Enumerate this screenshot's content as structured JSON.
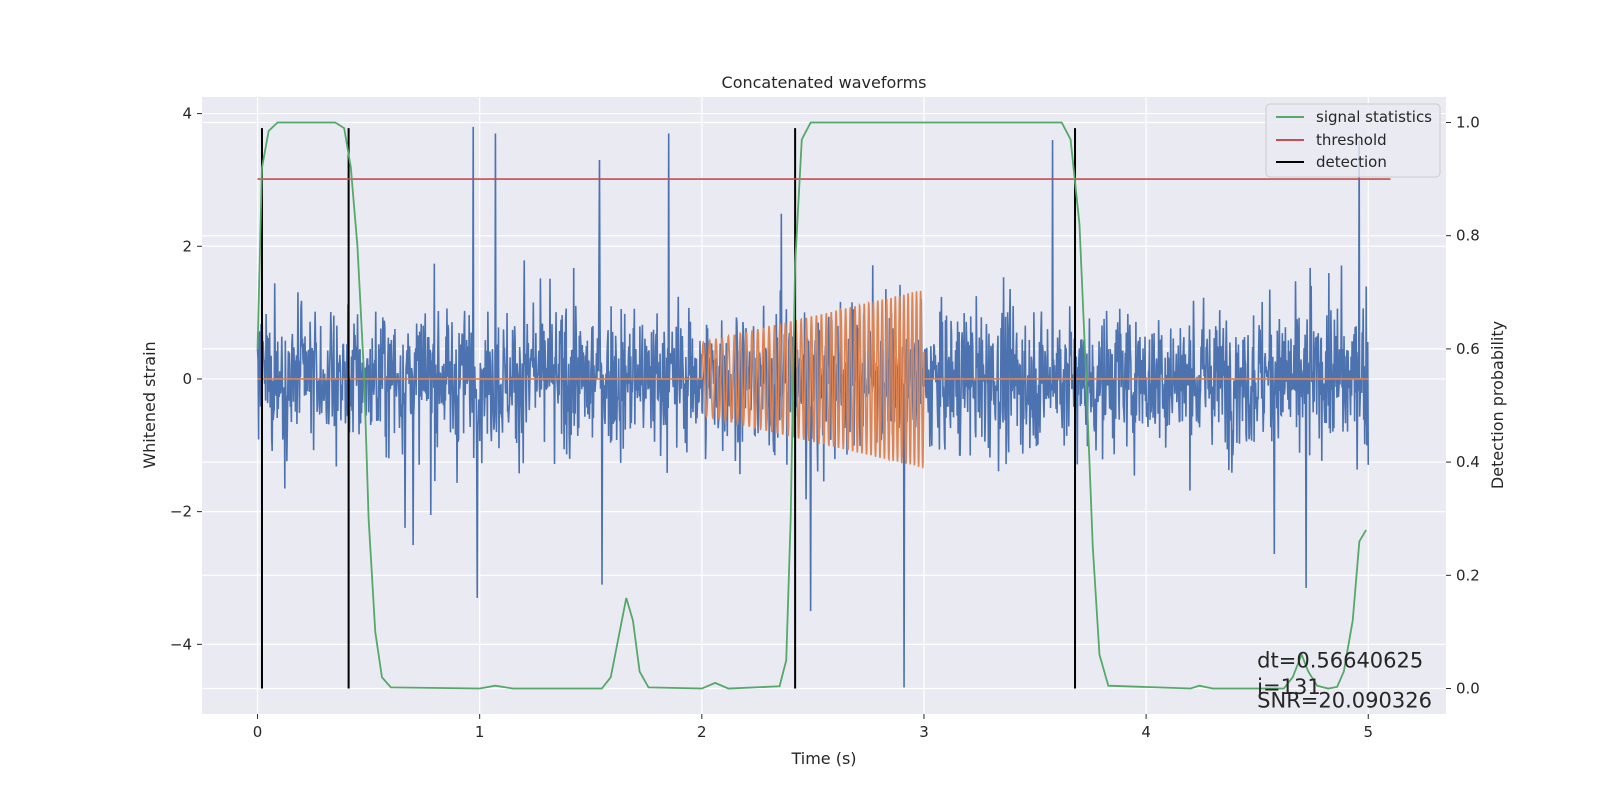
{
  "chart_data": {
    "type": "line",
    "title": "Concatenated waveforms",
    "xlabel": "Time (s)",
    "ylabel": "Whitened strain",
    "y2label": "Detection probability",
    "xlim": [
      -0.25,
      5.35
    ],
    "ylim": [
      -5.05,
      4.25
    ],
    "y2lim": [
      -0.045,
      1.045
    ],
    "xticks": [
      0,
      1,
      2,
      3,
      4,
      5
    ],
    "xtick_labels": [
      "0",
      "1",
      "2",
      "3",
      "4",
      "5"
    ],
    "yticks": [
      -4,
      -2,
      0,
      2,
      4
    ],
    "ytick_labels": [
      "−4",
      "−2",
      "0",
      "2",
      "4"
    ],
    "y2ticks": [
      0.0,
      0.2,
      0.4,
      0.6,
      0.8,
      1.0
    ],
    "y2tick_labels": [
      "0.0",
      "0.2",
      "0.4",
      "0.6",
      "0.8",
      "1.0"
    ],
    "grid": true,
    "legend_position": "top-right",
    "series": [
      {
        "name": "",
        "role": "whitened strain noise",
        "axis": "left",
        "color": "#4c72b0",
        "x_range": [
          0,
          5
        ],
        "typical_amplitude": 0.75,
        "outliers": [
          {
            "x": 0.97,
            "y": 3.8
          },
          {
            "x": 1.07,
            "y": 3.7
          },
          {
            "x": 1.85,
            "y": 3.7
          },
          {
            "x": 1.54,
            "y": 3.3
          },
          {
            "x": 4.96,
            "y": 3.6
          },
          {
            "x": 3.58,
            "y": 3.6
          },
          {
            "x": 2.91,
            "y": -4.7
          },
          {
            "x": 0.99,
            "y": -3.3
          },
          {
            "x": 1.55,
            "y": -3.1
          },
          {
            "x": 2.49,
            "y": -3.5
          },
          {
            "x": 4.72,
            "y": -3.15
          }
        ]
      },
      {
        "name": "",
        "role": "injected chirp",
        "axis": "left",
        "color": "#dd8452",
        "x_range": [
          0,
          5
        ],
        "chirp_start": 2.0,
        "chirp_end": 3.0,
        "amplitude_start": 0.55,
        "amplitude_end": 1.35
      },
      {
        "name": "signal statistics",
        "axis": "right",
        "color": "#55a868",
        "points": [
          [
            0.0,
            0.6
          ],
          [
            0.02,
            0.92
          ],
          [
            0.05,
            0.985
          ],
          [
            0.09,
            1.0
          ],
          [
            0.35,
            1.0
          ],
          [
            0.39,
            0.99
          ],
          [
            0.42,
            0.92
          ],
          [
            0.45,
            0.78
          ],
          [
            0.48,
            0.55
          ],
          [
            0.5,
            0.3
          ],
          [
            0.53,
            0.1
          ],
          [
            0.56,
            0.02
          ],
          [
            0.6,
            0.002
          ],
          [
            1.0,
            0.0
          ],
          [
            1.07,
            0.005
          ],
          [
            1.15,
            0.0
          ],
          [
            1.55,
            0.0
          ],
          [
            1.59,
            0.02
          ],
          [
            1.62,
            0.08
          ],
          [
            1.66,
            0.16
          ],
          [
            1.69,
            0.12
          ],
          [
            1.72,
            0.03
          ],
          [
            1.76,
            0.002
          ],
          [
            2.0,
            0.0
          ],
          [
            2.06,
            0.01
          ],
          [
            2.12,
            0.0
          ],
          [
            2.35,
            0.004
          ],
          [
            2.38,
            0.05
          ],
          [
            2.4,
            0.3
          ],
          [
            2.42,
            0.75
          ],
          [
            2.45,
            0.97
          ],
          [
            2.49,
            1.0
          ],
          [
            3.62,
            1.0
          ],
          [
            3.66,
            0.97
          ],
          [
            3.7,
            0.82
          ],
          [
            3.73,
            0.55
          ],
          [
            3.76,
            0.25
          ],
          [
            3.79,
            0.06
          ],
          [
            3.83,
            0.005
          ],
          [
            4.2,
            0.0
          ],
          [
            4.24,
            0.005
          ],
          [
            4.3,
            0.0
          ],
          [
            4.62,
            0.0
          ],
          [
            4.66,
            0.02
          ],
          [
            4.7,
            0.06
          ],
          [
            4.73,
            0.03
          ],
          [
            4.77,
            0.005
          ],
          [
            4.82,
            0.0
          ],
          [
            4.86,
            0.003
          ],
          [
            4.89,
            0.03
          ],
          [
            4.93,
            0.12
          ],
          [
            4.96,
            0.26
          ],
          [
            4.99,
            0.28
          ]
        ]
      },
      {
        "name": "threshold",
        "axis": "right",
        "color": "#c44e52",
        "x": [
          0,
          5.1
        ],
        "y": 0.9
      },
      {
        "name": "detection",
        "axis": "right",
        "color": "#000000",
        "x_positions": [
          0.02,
          0.41,
          2.42,
          3.68
        ],
        "y_range": [
          0.0,
          0.99
        ]
      }
    ],
    "annotations": [
      {
        "text": "dt=0.56640625",
        "x": 4.5,
        "y": -4.35
      },
      {
        "text": " i=131",
        "x": 4.5,
        "y": -4.75
      },
      {
        "text": "SNR=20.090326",
        "x": 4.5,
        "y": -4.95
      }
    ]
  }
}
